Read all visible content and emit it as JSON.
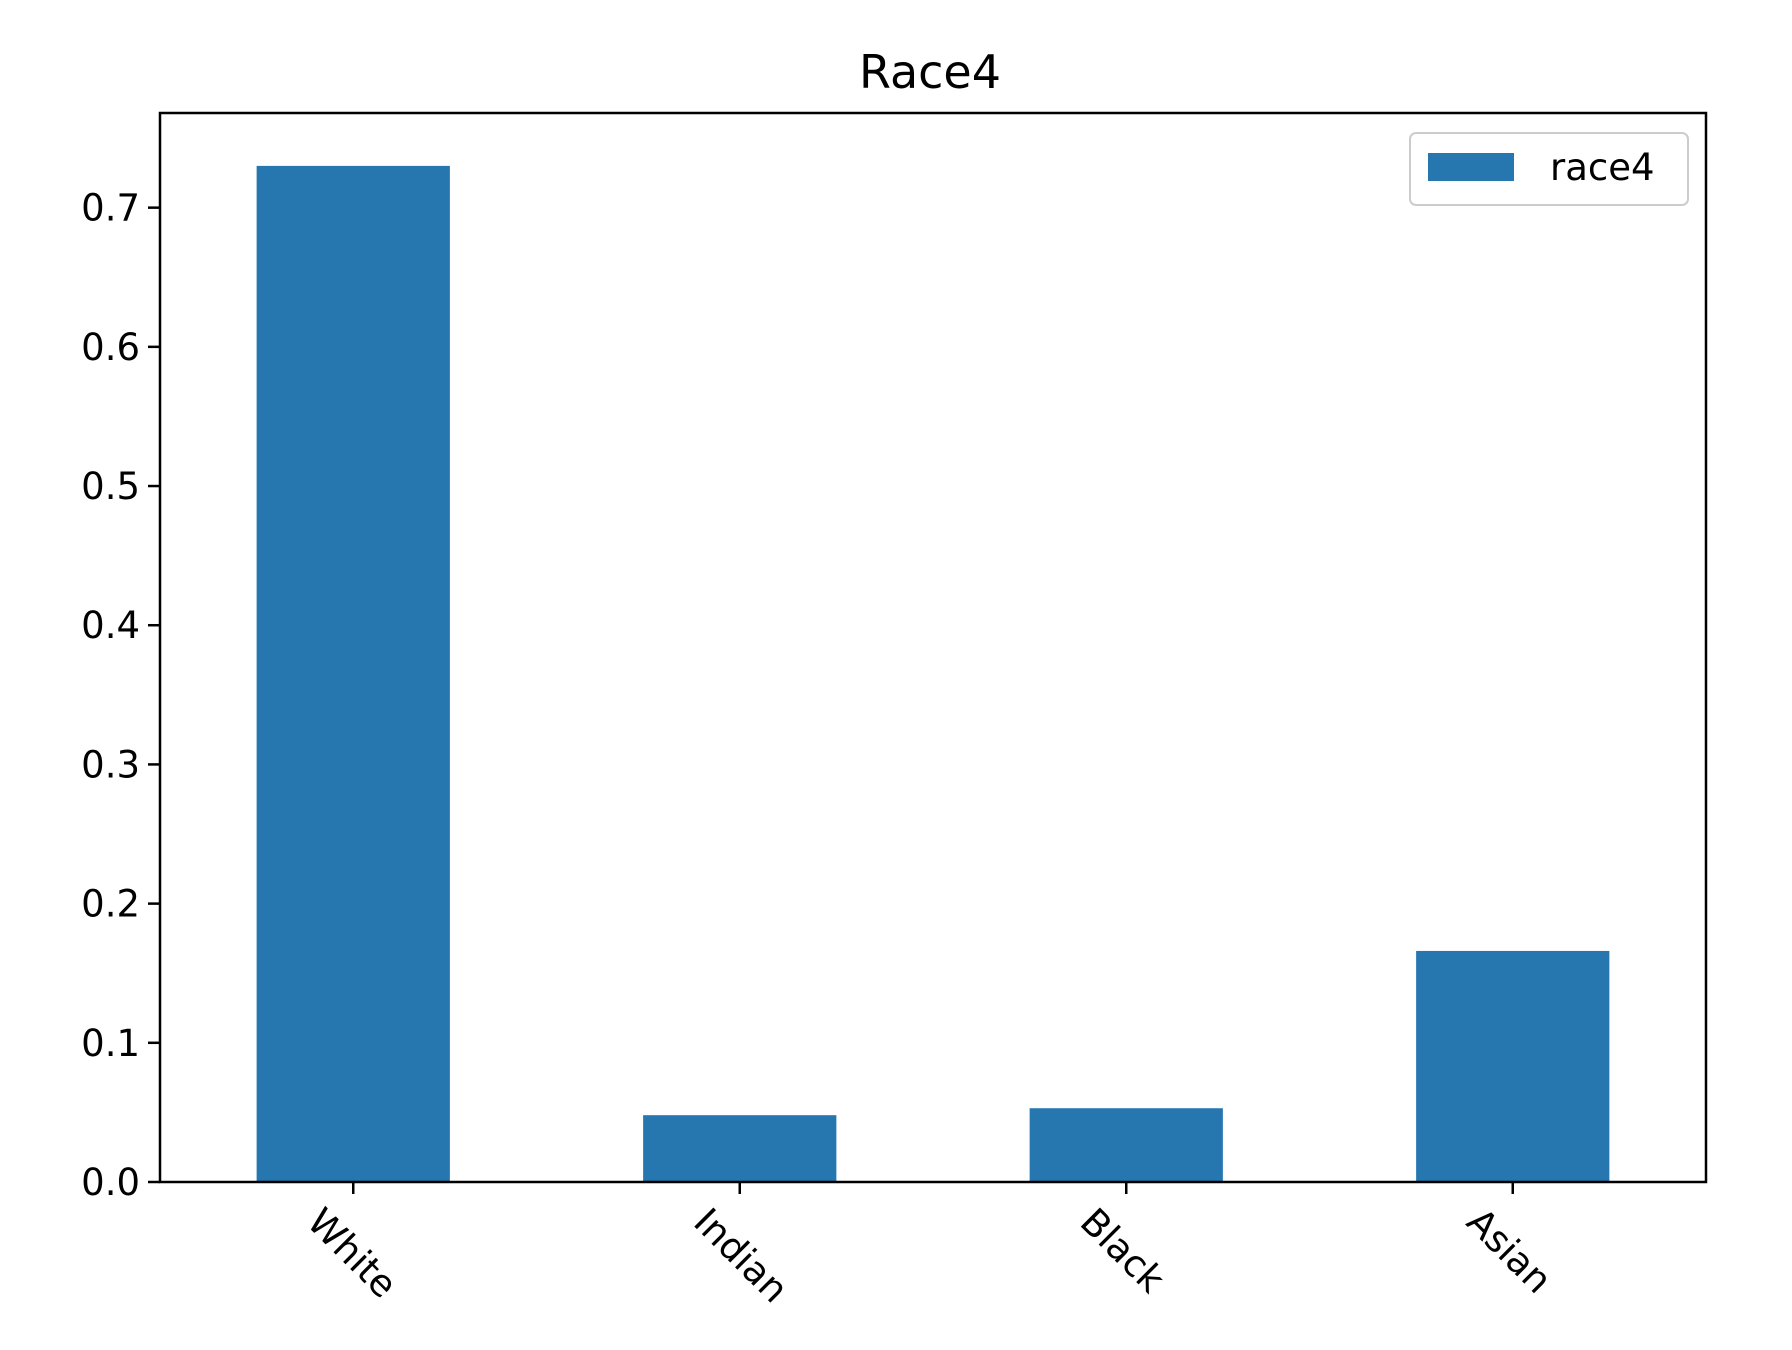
{
  "chart_data": {
    "type": "bar",
    "title": "Race4",
    "xlabel": "",
    "ylabel": "",
    "categories": [
      "White",
      "Indian",
      "Black",
      "Asian"
    ],
    "series": [
      {
        "name": "race4",
        "values": [
          0.73,
          0.048,
          0.053,
          0.166
        ]
      }
    ],
    "ylim": [
      0.0,
      0.768
    ],
    "yticks": [
      0.0,
      0.1,
      0.2,
      0.3,
      0.4,
      0.5,
      0.6,
      0.7
    ],
    "ytick_labels": [
      "0.0",
      "0.1",
      "0.2",
      "0.3",
      "0.4",
      "0.5",
      "0.6",
      "0.7"
    ],
    "xtick_rotation_deg": -45,
    "grid": false,
    "legend_position": "top-right",
    "colors": {
      "bar": "#2677b0",
      "axis": "#000000",
      "legend_border": "#cccccc"
    }
  }
}
